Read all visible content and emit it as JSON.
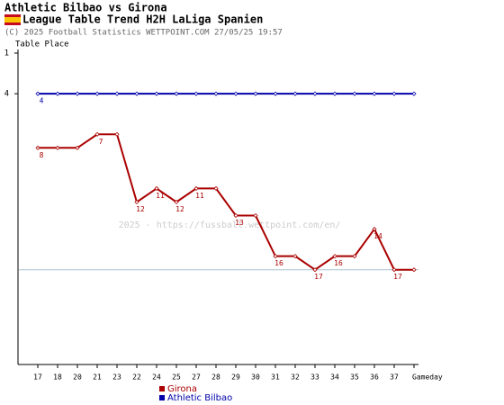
{
  "chart_data": {
    "type": "line",
    "title": "Athletic Bilbao vs Girona",
    "subtitle": "League Table Trend H2H LaLiga Spanien",
    "copyright": "(C) 2025 Football Statistics WETTPOINT.COM 27/05/25 19:57",
    "watermark": "2025 - https://fussball.wettpoint.com/en/",
    "y_label": "Table Place",
    "x_label": "Gameday",
    "categories": [
      "17",
      "18",
      "20",
      "21",
      "23",
      "22",
      "24",
      "25",
      "27",
      "28",
      "29",
      "30",
      "31",
      "32",
      "33",
      "34",
      "35",
      "36",
      "37",
      null
    ],
    "series": [
      {
        "name": "Girona",
        "color": "#aa0000",
        "values": [
          8,
          8,
          8,
          7,
          7,
          12,
          11,
          12,
          11,
          11,
          13,
          13,
          16,
          16,
          17,
          16,
          16,
          14,
          17,
          17
        ]
      },
      {
        "name": "Athletic Bilbao",
        "color": "#0000aa",
        "values": [
          4,
          4,
          4,
          4,
          4,
          4,
          4,
          4,
          4,
          4,
          4,
          4,
          4,
          4,
          4,
          4,
          4,
          4,
          4,
          4
        ]
      }
    ],
    "ylim": [
      1,
      24
    ],
    "yticks": [
      1,
      4
    ],
    "y_inverted": true,
    "reference_line": 17
  }
}
